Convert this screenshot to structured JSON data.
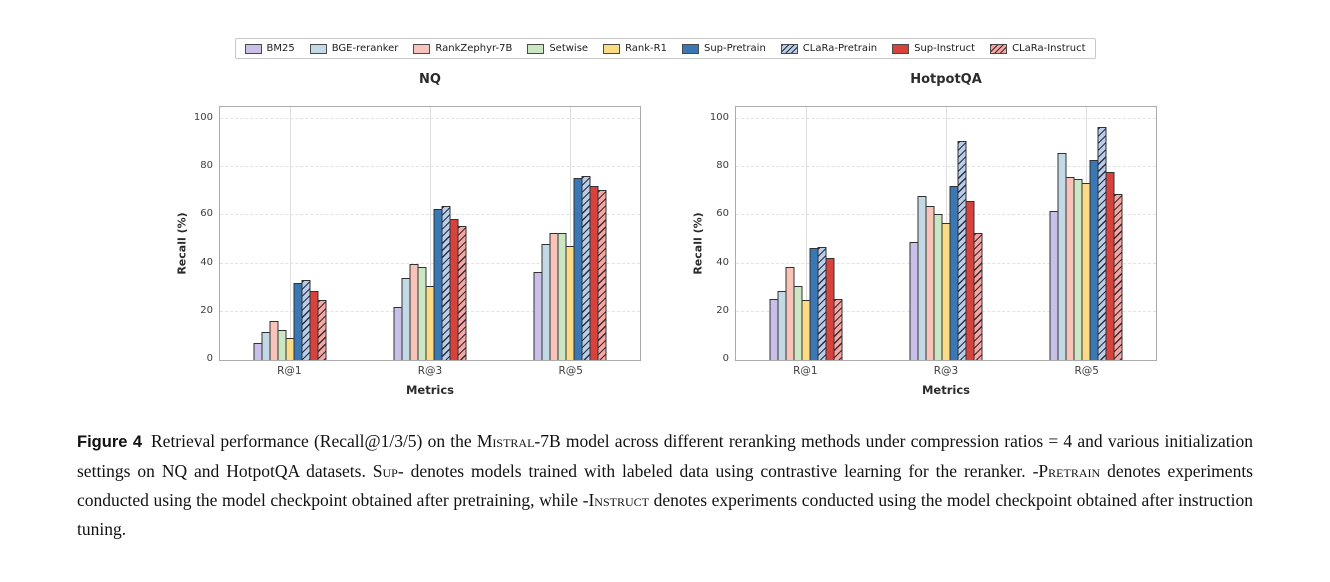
{
  "legend": {
    "items": [
      {
        "label": "BM25",
        "color": "#c9bfe8",
        "hatch": false
      },
      {
        "label": "BGE-reranker",
        "color": "#c2d9e6",
        "hatch": false
      },
      {
        "label": "RankZephyr-7B",
        "color": "#f8c3b8",
        "hatch": false
      },
      {
        "label": "Setwise",
        "color": "#cbe6c3",
        "hatch": false
      },
      {
        "label": "Rank-R1",
        "color": "#fbdb85",
        "hatch": false
      },
      {
        "label": "Sup-Pretrain",
        "color": "#3a78b5",
        "hatch": false
      },
      {
        "label": "CLaRa-Pretrain",
        "color": "#b7cde9",
        "hatch": true
      },
      {
        "label": "Sup-Instruct",
        "color": "#d8423c",
        "hatch": false
      },
      {
        "label": "CLaRa-Instruct",
        "color": "#f7a69f",
        "hatch": true
      }
    ]
  },
  "chart_data": [
    {
      "type": "bar",
      "title": "NQ",
      "xlabel": "Metrics",
      "ylabel": "Recall (%)",
      "categories": [
        "R@1",
        "R@3",
        "R@5"
      ],
      "ylim": [
        0,
        105
      ],
      "yticks": [
        0,
        20,
        40,
        60,
        80,
        100
      ],
      "grid": true,
      "legend_position": "top-center",
      "series": [
        {
          "name": "BM25",
          "values": [
            7,
            22,
            36.5
          ]
        },
        {
          "name": "BGE-reranker",
          "values": [
            11.5,
            34,
            48
          ]
        },
        {
          "name": "RankZephyr-7B",
          "values": [
            16,
            40,
            52.5
          ]
        },
        {
          "name": "Setwise",
          "values": [
            12.5,
            38.5,
            52.5
          ]
        },
        {
          "name": "Rank-R1",
          "values": [
            9,
            30.5,
            47.5
          ]
        },
        {
          "name": "Sup-Pretrain",
          "values": [
            32,
            62.5,
            75.5
          ]
        },
        {
          "name": "CLaRa-Pretrain",
          "values": [
            33,
            64,
            76.5
          ]
        },
        {
          "name": "Sup-Instruct",
          "values": [
            28.5,
            58.5,
            72
          ]
        },
        {
          "name": "CLaRa-Instruct",
          "values": [
            25,
            55.5,
            70.5
          ]
        }
      ]
    },
    {
      "type": "bar",
      "title": "HotpotQA",
      "xlabel": "Metrics",
      "ylabel": "Recall (%)",
      "categories": [
        "R@1",
        "R@3",
        "R@5"
      ],
      "ylim": [
        0,
        105
      ],
      "yticks": [
        0,
        20,
        40,
        60,
        80,
        100
      ],
      "grid": true,
      "legend_position": "top-center",
      "series": [
        {
          "name": "BM25",
          "values": [
            25.5,
            49,
            62
          ]
        },
        {
          "name": "BGE-reranker",
          "values": [
            28.5,
            68,
            86
          ]
        },
        {
          "name": "RankZephyr-7B",
          "values": [
            38.5,
            64,
            76
          ]
        },
        {
          "name": "Setwise",
          "values": [
            30.5,
            60.5,
            75
          ]
        },
        {
          "name": "Rank-R1",
          "values": [
            25,
            57,
            73.5
          ]
        },
        {
          "name": "Sup-Pretrain",
          "values": [
            46.5,
            72,
            83
          ]
        },
        {
          "name": "CLaRa-Pretrain",
          "values": [
            47,
            91,
            96.5
          ]
        },
        {
          "name": "Sup-Instruct",
          "values": [
            42.5,
            66,
            78
          ]
        },
        {
          "name": "CLaRa-Instruct",
          "values": [
            25.5,
            52.5,
            69
          ]
        }
      ]
    }
  ],
  "caption": {
    "segments": [
      {
        "text": "Figure 4",
        "style": "figlabel"
      },
      {
        "text": "Retrieval performance (Recall@1/3/5) on the ",
        "style": "normal"
      },
      {
        "text": "Mistral",
        "style": "smallcaps"
      },
      {
        "text": "-7B model across different reranking methods under compression ratios = 4 and various initialization settings on NQ and HotpotQA datasets. ",
        "style": "normal"
      },
      {
        "text": "Sup-",
        "style": "smallcaps"
      },
      {
        "text": " denotes models trained with labeled data using contrastive learning for the reranker. -",
        "style": "normal"
      },
      {
        "text": "Pretrain",
        "style": "smallcaps"
      },
      {
        "text": " denotes experiments conducted using the model checkpoint obtained after pretraining, while -",
        "style": "normal"
      },
      {
        "text": "Instruct",
        "style": "smallcaps"
      },
      {
        "text": " denotes experiments conducted using the model checkpoint obtained after instruction tuning.",
        "style": "normal"
      }
    ]
  }
}
